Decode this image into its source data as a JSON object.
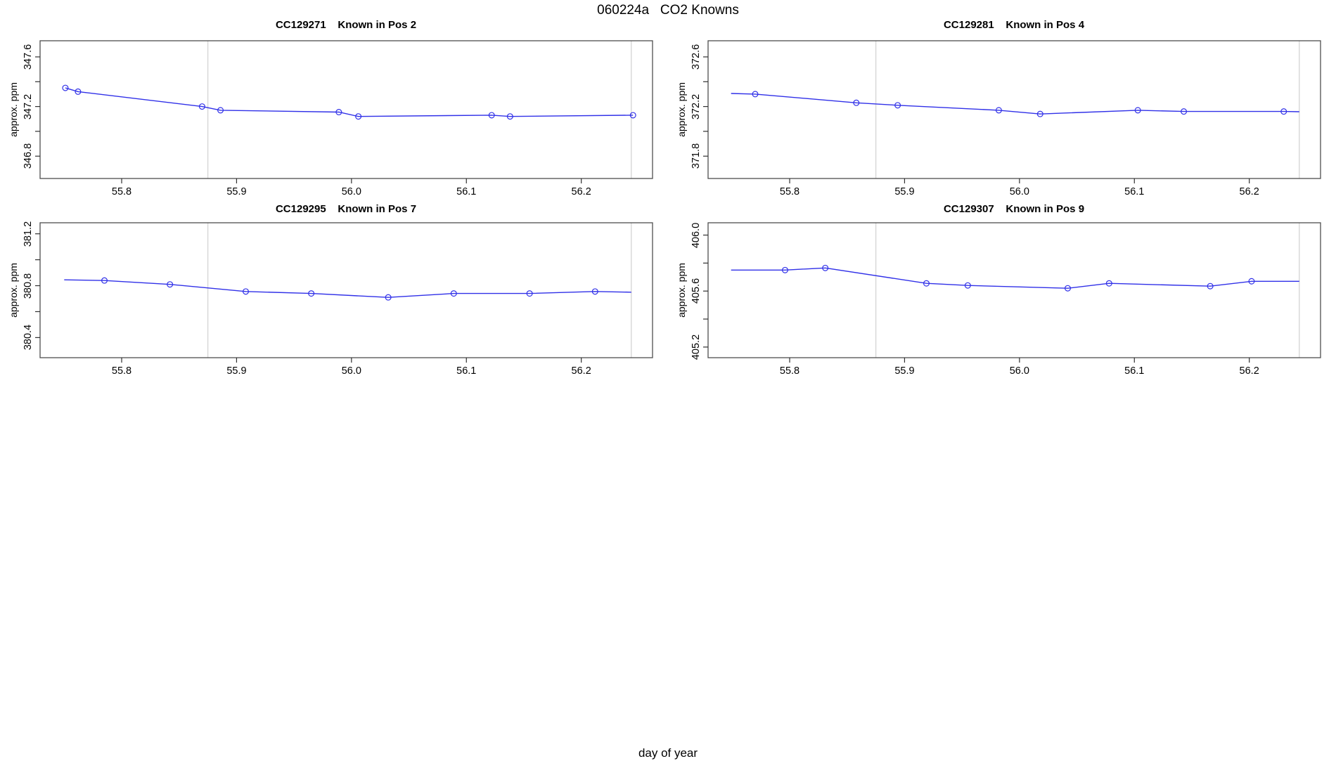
{
  "page_title": "060224a   CO2 Knowns",
  "xlabel": "day of year",
  "colors": {
    "line": "#3030e8",
    "marker": "#3030e8",
    "ref_line": "#d9d9d9",
    "border": "#4d4d4d",
    "tick": "#303030",
    "text": "#000000",
    "background": "#ffffff"
  },
  "chart_data": [
    {
      "type": "line",
      "title": "CC129271    Known in Pos 2",
      "ylabel": "approx. ppm",
      "marker": "open-circle",
      "grid": false,
      "xlim": [
        55.729,
        56.262
      ],
      "ylim": [
        346.62,
        347.73
      ],
      "x_ticks": [
        55.8,
        55.9,
        56.0,
        56.1,
        56.2
      ],
      "x_tick_labels": [
        "55.8",
        "55.9",
        "56.0",
        "56.1",
        "56.2"
      ],
      "y_ticks": [
        347.6,
        347.4,
        347.2,
        347.0,
        346.8
      ],
      "y_tick_labels": [
        "347.6",
        "",
        "347.2",
        "",
        "346.8"
      ],
      "ref_lines_x": [
        55.875,
        56.2435
      ],
      "line_start": [
        55.751,
        347.35
      ],
      "line_end": [
        56.245,
        347.13
      ],
      "points": [
        [
          55.751,
          347.35
        ],
        [
          55.762,
          347.32
        ],
        [
          55.87,
          347.2
        ],
        [
          55.886,
          347.17
        ],
        [
          55.989,
          347.155
        ],
        [
          56.006,
          347.12
        ],
        [
          56.122,
          347.13
        ],
        [
          56.138,
          347.12
        ],
        [
          56.245,
          347.13
        ]
      ]
    },
    {
      "type": "line",
      "title": "CC129281    Known in Pos 4",
      "ylabel": "approx. ppm",
      "marker": "open-circle",
      "grid": false,
      "xlim": [
        55.729,
        56.262
      ],
      "ylim": [
        371.62,
        372.73
      ],
      "x_ticks": [
        55.8,
        55.9,
        56.0,
        56.1,
        56.2
      ],
      "x_tick_labels": [
        "55.8",
        "55.9",
        "56.0",
        "56.1",
        "56.2"
      ],
      "y_ticks": [
        372.6,
        372.4,
        372.2,
        372.0,
        371.8
      ],
      "y_tick_labels": [
        "372.6",
        "",
        "372.2",
        "",
        "371.8"
      ],
      "ref_lines_x": [
        55.875,
        56.2435
      ],
      "line_start": [
        55.749,
        372.305
      ],
      "line_end": [
        56.2435,
        372.158
      ],
      "points": [
        [
          55.77,
          372.3
        ],
        [
          55.858,
          372.23
        ],
        [
          55.894,
          372.21
        ],
        [
          55.982,
          372.17
        ],
        [
          56.018,
          372.14
        ],
        [
          56.103,
          372.17
        ],
        [
          56.143,
          372.16
        ],
        [
          56.23,
          372.16
        ]
      ]
    },
    {
      "type": "line",
      "title": "CC129295    Known in Pos 7",
      "ylabel": "approx. ppm",
      "marker": "open-circle",
      "grid": false,
      "xlim": [
        55.729,
        56.262
      ],
      "ylim": [
        380.245,
        381.285
      ],
      "x_ticks": [
        55.8,
        55.9,
        56.0,
        56.1,
        56.2
      ],
      "x_tick_labels": [
        "55.8",
        "55.9",
        "56.0",
        "56.1",
        "56.2"
      ],
      "y_ticks": [
        381.2,
        381.0,
        380.8,
        380.6,
        380.4
      ],
      "y_tick_labels": [
        "381.2",
        "",
        "380.8",
        "",
        "380.4"
      ],
      "ref_lines_x": [
        55.875,
        56.2435
      ],
      "line_start": [
        55.75,
        380.845
      ],
      "line_end": [
        56.2435,
        380.75
      ],
      "points": [
        [
          55.785,
          380.84
        ],
        [
          55.842,
          380.81
        ],
        [
          55.908,
          380.755
        ],
        [
          55.965,
          380.74
        ],
        [
          56.032,
          380.71
        ],
        [
          56.089,
          380.74
        ],
        [
          56.155,
          380.74
        ],
        [
          56.212,
          380.755
        ]
      ]
    },
    {
      "type": "line",
      "title": "CC129307    Known in Pos 9",
      "ylabel": "approx. ppm",
      "marker": "open-circle",
      "grid": false,
      "xlim": [
        55.729,
        56.262
      ],
      "ylim": [
        405.124,
        406.088
      ],
      "x_ticks": [
        55.8,
        55.9,
        56.0,
        56.1,
        56.2
      ],
      "x_tick_labels": [
        "55.8",
        "55.9",
        "56.0",
        "56.1",
        "56.2"
      ],
      "y_ticks": [
        406.0,
        405.8,
        405.6,
        405.4,
        405.2
      ],
      "y_tick_labels": [
        "406.0",
        "",
        "405.6",
        "",
        "405.2"
      ],
      "ref_lines_x": [
        55.875,
        56.2435
      ],
      "line_start": [
        55.749,
        405.75
      ],
      "line_end": [
        56.2435,
        405.67
      ],
      "points": [
        [
          55.796,
          405.75
        ],
        [
          55.831,
          405.765
        ],
        [
          55.919,
          405.655
        ],
        [
          55.955,
          405.64
        ],
        [
          56.042,
          405.62
        ],
        [
          56.078,
          405.655
        ],
        [
          56.166,
          405.635
        ],
        [
          56.202,
          405.67
        ]
      ]
    }
  ]
}
